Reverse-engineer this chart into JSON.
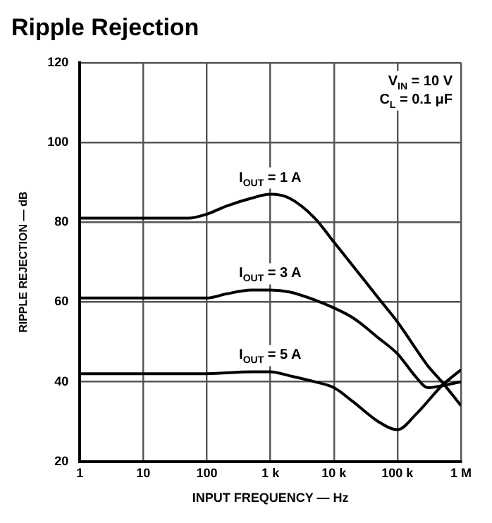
{
  "chart_data": {
    "type": "line",
    "title": "Ripple Rejection",
    "xlabel": "INPUT FREQUENCY — Hz",
    "ylabel": "RIPPLE REJECTION — dB",
    "annotations": [
      "V$_{IN}$ = 10 V",
      "C$_{L}$ = 0.1 μF"
    ],
    "log": "x",
    "grid": true,
    "legend": false,
    "marker": "none",
    "line_style": "solid",
    "xlim": [
      1,
      1000000
    ],
    "xticks": [
      1,
      10,
      100,
      {
        "value": 1000,
        "label": "1 k"
      },
      {
        "value": 10000,
        "label": "10 k"
      },
      {
        "value": 100000,
        "label": "100 k"
      },
      {
        "value": 1000000,
        "label": "1 M"
      }
    ],
    "ylim": [
      20,
      120
    ],
    "yticks": [
      20,
      40,
      60,
      80,
      100,
      120
    ],
    "series": [
      {
        "name": "I$_{OUT}$ = 1 A",
        "color": "#000000",
        "x": [
          1,
          10,
          50,
          100,
          200,
          500,
          1000,
          2000,
          5000,
          10000,
          20000,
          50000,
          100000,
          200000,
          300000,
          500000,
          1000000
        ],
        "values": [
          81,
          81,
          81,
          82,
          84,
          86,
          87,
          86,
          81,
          75,
          69,
          61,
          55,
          48,
          44,
          40,
          34
        ]
      },
      {
        "name": "I$_{OUT}$ = 3 A",
        "color": "#000000",
        "x": [
          1,
          10,
          100,
          200,
          500,
          1000,
          2000,
          5000,
          10000,
          20000,
          50000,
          100000,
          200000,
          300000,
          500000,
          1000000
        ],
        "values": [
          61,
          61,
          61,
          62,
          63,
          63,
          62.5,
          60.5,
          58.5,
          56,
          51,
          47,
          41,
          38.5,
          39,
          40
        ]
      },
      {
        "name": "I$_{OUT}$ = 5 A",
        "color": "#000000",
        "x": [
          1,
          10,
          100,
          500,
          1000,
          2000,
          5000,
          10000,
          20000,
          50000,
          100000,
          200000,
          500000,
          1000000
        ],
        "values": [
          42,
          42,
          42,
          42.5,
          42.5,
          41.5,
          40,
          38.5,
          35,
          30,
          28,
          32,
          39,
          43
        ]
      }
    ]
  }
}
